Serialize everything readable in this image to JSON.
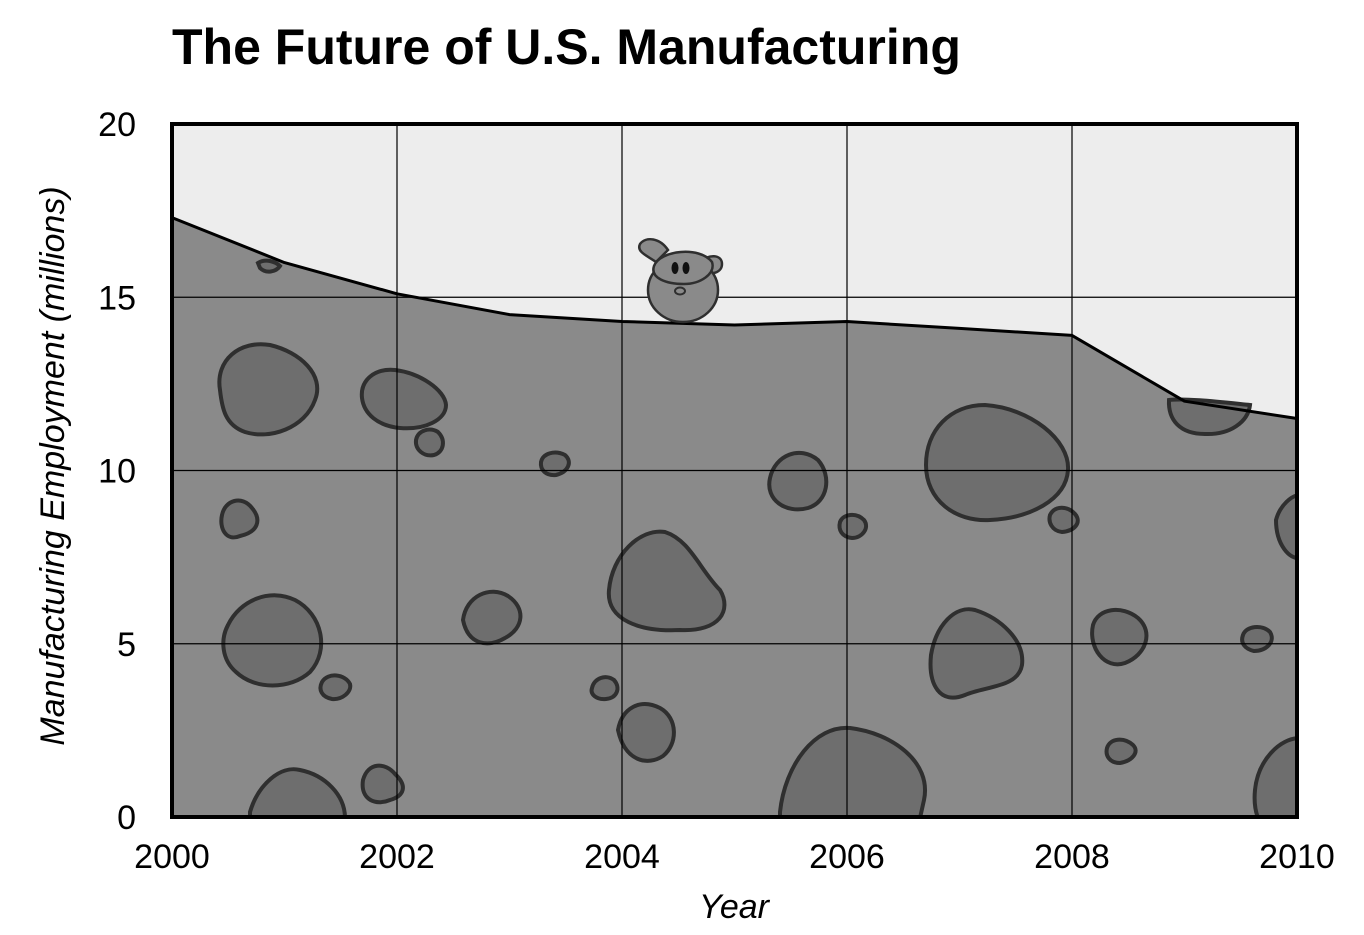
{
  "chart_data": {
    "type": "area",
    "title": "The Future of U.S. Manufacturing",
    "xlabel": "Year",
    "ylabel": "Manufacturing Employment (millions)",
    "xlim": [
      2000,
      2010
    ],
    "ylim": [
      0,
      20
    ],
    "x_ticks": [
      "2000",
      "2002",
      "2004",
      "2006",
      "2008",
      "2010"
    ],
    "y_ticks": [
      "0",
      "5",
      "10",
      "15",
      "20"
    ],
    "grid": true,
    "series": [
      {
        "x": [
          2000,
          2001,
          2002,
          2003,
          2004,
          2005,
          2006,
          2007,
          2008,
          2009,
          2010
        ],
        "values": [
          17.3,
          16.0,
          15.1,
          14.5,
          14.3,
          14.2,
          14.3,
          14.1,
          13.9,
          12.0,
          11.5
        ]
      }
    ],
    "decoration": "cheese-with-holes-and-mouse",
    "colors": {
      "plot_background": "#ededed",
      "area_fill": "#8a8a8a",
      "hole_fill": "#6e6e6e",
      "line": "#000000"
    }
  }
}
